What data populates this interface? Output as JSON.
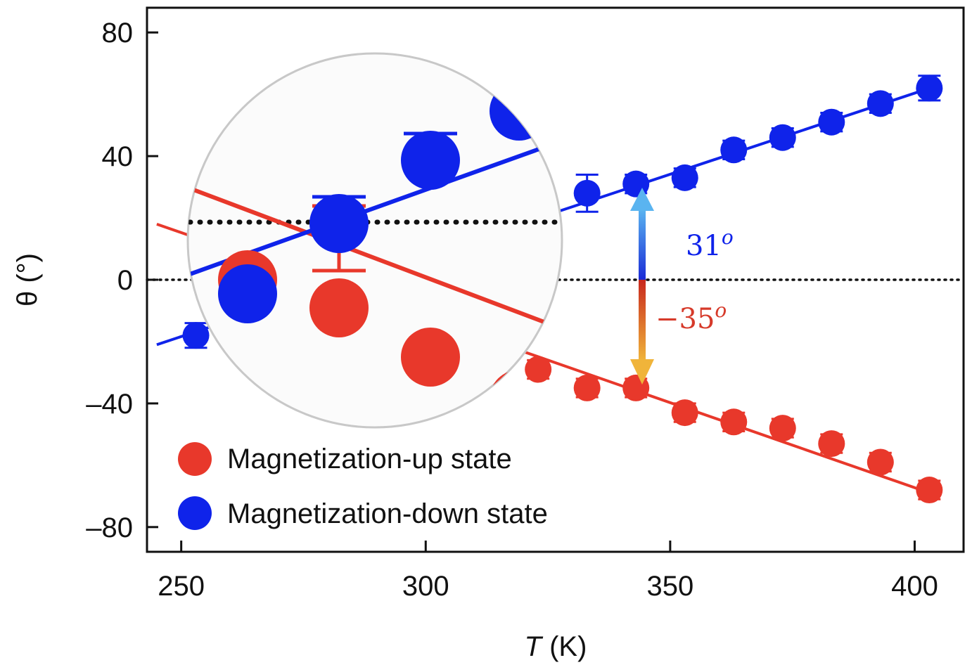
{
  "chart_data": {
    "type": "scatter",
    "title": "",
    "xlabel_var": "T",
    "xlabel_unit": "(K)",
    "ylabel": "θ (°)",
    "xlim": [
      243,
      410
    ],
    "ylim": [
      -88,
      88
    ],
    "xticks": [
      250,
      300,
      350,
      400
    ],
    "yticks": [
      80,
      40,
      0,
      -40,
      -80
    ],
    "ytick_labels": [
      "80",
      "40",
      "0",
      "–40",
      "–80"
    ],
    "zero_line": "dotted",
    "series": [
      {
        "name": "Magnetization-up state",
        "color": "#e8382b",
        "x": [
          323,
          333,
          343,
          353,
          363,
          373,
          383,
          393,
          403
        ],
        "y": [
          -29,
          -35,
          -35,
          -43,
          -46,
          -48,
          -53,
          -59,
          -68
        ],
        "fit": {
          "x": [
            245,
            405
          ],
          "y": [
            18,
            -70
          ]
        }
      },
      {
        "name": "Magnetization-down state",
        "color": "#0f23ea",
        "x": [
          253,
          333,
          343,
          353,
          363,
          373,
          383,
          393,
          403
        ],
        "y": [
          -18,
          28,
          31,
          33,
          42,
          46,
          51,
          57,
          62
        ],
        "error": [
          4,
          6,
          3,
          3,
          3,
          3,
          3,
          3,
          4
        ],
        "fit": {
          "x": [
            245,
            405
          ],
          "y": [
            -21,
            63
          ]
        }
      }
    ],
    "annotations": [
      {
        "text_base": "31",
        "text_sup": "o",
        "color": "#0f23ea",
        "x": 343,
        "from": 0,
        "to": 31
      },
      {
        "text_base": "−35",
        "text_sup": "o",
        "color": "#d63a2a",
        "x": 343,
        "from": 0,
        "to": -35
      }
    ],
    "legend": {
      "position": "bottom-left"
    },
    "inset": {
      "type": "zoomed view",
      "up_points_y": [
        -8,
        -12,
        -19,
        -25
      ],
      "down_points_y": [
        -10,
        0,
        9,
        16
      ]
    }
  }
}
